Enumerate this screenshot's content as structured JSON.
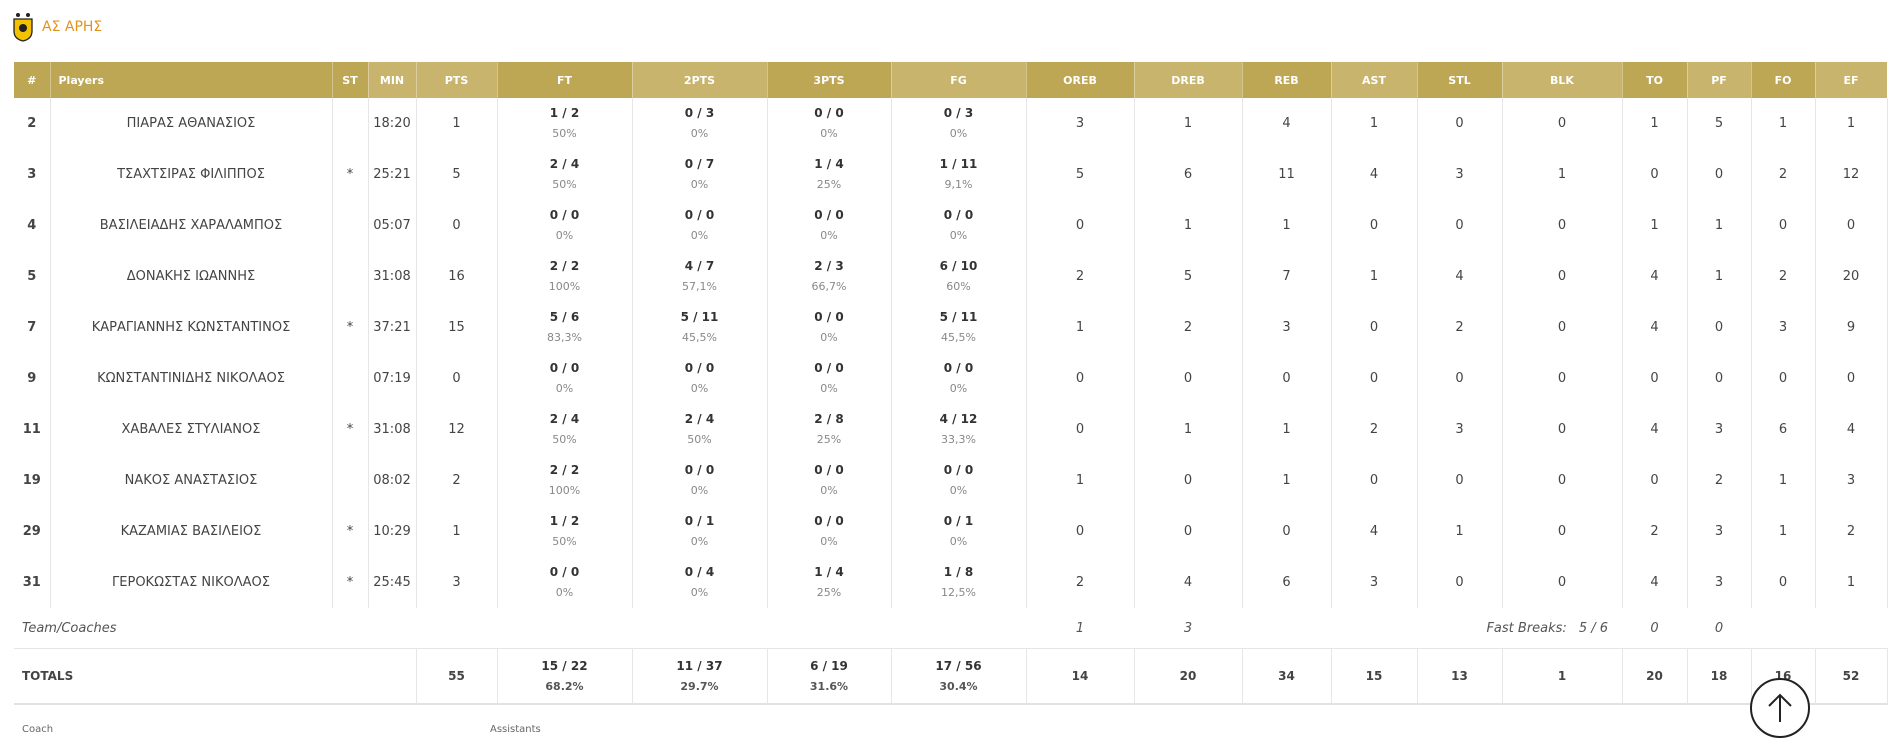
{
  "team": {
    "name": "ΑΣ ΑΡΗΣ"
  },
  "colors": {
    "header_dark": "#bda654",
    "header_light": "#c8b46c",
    "team_name": "#e2931c"
  },
  "headers": [
    "#",
    "Players",
    "ST",
    "MIN",
    "PTS",
    "FT",
    "2PTS",
    "3PTS",
    "FG",
    "OREB",
    "DREB",
    "REB",
    "AST",
    "STL",
    "BLK",
    "TO",
    "PF",
    "FO",
    "EF"
  ],
  "players": [
    {
      "num": "2",
      "name": "ΠΙΑΡΑΣ ΑΘΑΝΑΣΙΟΣ",
      "st": "",
      "min": "18:20",
      "pts": "1",
      "ft": "1 / 2",
      "ft_pct": "50%",
      "p2": "0 / 3",
      "p2_pct": "0%",
      "p3": "0 / 0",
      "p3_pct": "0%",
      "fg": "0 / 3",
      "fg_pct": "0%",
      "oreb": "3",
      "dreb": "1",
      "reb": "4",
      "ast": "1",
      "stl": "0",
      "blk": "0",
      "to": "1",
      "pf": "5",
      "fo": "1",
      "ef": "1"
    },
    {
      "num": "3",
      "name": "ΤΣΑΧΤΣΙΡΑΣ ΦΙΛΙΠΠΟΣ",
      "st": "*",
      "min": "25:21",
      "pts": "5",
      "ft": "2 / 4",
      "ft_pct": "50%",
      "p2": "0 / 7",
      "p2_pct": "0%",
      "p3": "1 / 4",
      "p3_pct": "25%",
      "fg": "1 / 11",
      "fg_pct": "9,1%",
      "oreb": "5",
      "dreb": "6",
      "reb": "11",
      "ast": "4",
      "stl": "3",
      "blk": "1",
      "to": "0",
      "pf": "0",
      "fo": "2",
      "ef": "12"
    },
    {
      "num": "4",
      "name": "ΒΑΣΙΛΕΙΑΔΗΣ ΧΑΡΑΛΑΜΠΟΣ",
      "st": "",
      "min": "05:07",
      "pts": "0",
      "ft": "0 / 0",
      "ft_pct": "0%",
      "p2": "0 / 0",
      "p2_pct": "0%",
      "p3": "0 / 0",
      "p3_pct": "0%",
      "fg": "0 / 0",
      "fg_pct": "0%",
      "oreb": "0",
      "dreb": "1",
      "reb": "1",
      "ast": "0",
      "stl": "0",
      "blk": "0",
      "to": "1",
      "pf": "1",
      "fo": "0",
      "ef": "0"
    },
    {
      "num": "5",
      "name": "ΔΟΝΑΚΗΣ ΙΩΑΝΝΗΣ",
      "st": "",
      "min": "31:08",
      "pts": "16",
      "ft": "2 / 2",
      "ft_pct": "100%",
      "p2": "4 / 7",
      "p2_pct": "57,1%",
      "p3": "2 / 3",
      "p3_pct": "66,7%",
      "fg": "6 / 10",
      "fg_pct": "60%",
      "oreb": "2",
      "dreb": "5",
      "reb": "7",
      "ast": "1",
      "stl": "4",
      "blk": "0",
      "to": "4",
      "pf": "1",
      "fo": "2",
      "ef": "20"
    },
    {
      "num": "7",
      "name": "ΚΑΡΑΓΙΑΝΝΗΣ ΚΩΝΣΤΑΝΤΙΝΟΣ",
      "st": "*",
      "min": "37:21",
      "pts": "15",
      "ft": "5 / 6",
      "ft_pct": "83,3%",
      "p2": "5 / 11",
      "p2_pct": "45,5%",
      "p3": "0 / 0",
      "p3_pct": "0%",
      "fg": "5 / 11",
      "fg_pct": "45,5%",
      "oreb": "1",
      "dreb": "2",
      "reb": "3",
      "ast": "0",
      "stl": "2",
      "blk": "0",
      "to": "4",
      "pf": "0",
      "fo": "3",
      "ef": "9"
    },
    {
      "num": "9",
      "name": "ΚΩΝΣΤΑΝΤΙΝΙΔΗΣ ΝΙΚΟΛΑΟΣ",
      "st": "",
      "min": "07:19",
      "pts": "0",
      "ft": "0 / 0",
      "ft_pct": "0%",
      "p2": "0 / 0",
      "p2_pct": "0%",
      "p3": "0 / 0",
      "p3_pct": "0%",
      "fg": "0 / 0",
      "fg_pct": "0%",
      "oreb": "0",
      "dreb": "0",
      "reb": "0",
      "ast": "0",
      "stl": "0",
      "blk": "0",
      "to": "0",
      "pf": "0",
      "fo": "0",
      "ef": "0"
    },
    {
      "num": "11",
      "name": "ΧΑΒΑΛΕΣ ΣΤΥΛΙΑΝΟΣ",
      "st": "*",
      "min": "31:08",
      "pts": "12",
      "ft": "2 / 4",
      "ft_pct": "50%",
      "p2": "2 / 4",
      "p2_pct": "50%",
      "p3": "2 / 8",
      "p3_pct": "25%",
      "fg": "4 / 12",
      "fg_pct": "33,3%",
      "oreb": "0",
      "dreb": "1",
      "reb": "1",
      "ast": "2",
      "stl": "3",
      "blk": "0",
      "to": "4",
      "pf": "3",
      "fo": "6",
      "ef": "4"
    },
    {
      "num": "19",
      "name": "ΝΑΚΟΣ ΑΝΑΣΤΑΣΙΟΣ",
      "st": "",
      "min": "08:02",
      "pts": "2",
      "ft": "2 / 2",
      "ft_pct": "100%",
      "p2": "0 / 0",
      "p2_pct": "0%",
      "p3": "0 / 0",
      "p3_pct": "0%",
      "fg": "0 / 0",
      "fg_pct": "0%",
      "oreb": "1",
      "dreb": "0",
      "reb": "1",
      "ast": "0",
      "stl": "0",
      "blk": "0",
      "to": "0",
      "pf": "2",
      "fo": "1",
      "ef": "3"
    },
    {
      "num": "29",
      "name": "ΚΑΖΑΜΙΑΣ ΒΑΣΙΛΕΙΟΣ",
      "st": "*",
      "min": "10:29",
      "pts": "1",
      "ft": "1 / 2",
      "ft_pct": "50%",
      "p2": "0 / 1",
      "p2_pct": "0%",
      "p3": "0 / 0",
      "p3_pct": "0%",
      "fg": "0 / 1",
      "fg_pct": "0%",
      "oreb": "0",
      "dreb": "0",
      "reb": "0",
      "ast": "4",
      "stl": "1",
      "blk": "0",
      "to": "2",
      "pf": "3",
      "fo": "1",
      "ef": "2"
    },
    {
      "num": "31",
      "name": "ΓΕΡΟΚΩΣΤΑΣ ΝΙΚΟΛΑΟΣ",
      "st": "*",
      "min": "25:45",
      "pts": "3",
      "ft": "0 / 0",
      "ft_pct": "0%",
      "p2": "0 / 4",
      "p2_pct": "0%",
      "p3": "1 / 4",
      "p3_pct": "25%",
      "fg": "1 / 8",
      "fg_pct": "12,5%",
      "oreb": "2",
      "dreb": "4",
      "reb": "6",
      "ast": "3",
      "stl": "0",
      "blk": "0",
      "to": "4",
      "pf": "3",
      "fo": "0",
      "ef": "1"
    }
  ],
  "team_row": {
    "label": "Team/Coaches",
    "oreb": "1",
    "dreb": "3",
    "fast_breaks_label": "Fast Breaks:",
    "fast_breaks_value": "5 / 6",
    "to": "0",
    "pf": "0"
  },
  "totals": {
    "label": "TOTALS",
    "pts": "55",
    "ft": "15 / 22",
    "ft_pct": "68.2%",
    "p2": "11 / 37",
    "p2_pct": "29.7%",
    "p3": "6 / 19",
    "p3_pct": "31.6%",
    "fg": "17 / 56",
    "fg_pct": "30.4%",
    "oreb": "14",
    "dreb": "20",
    "reb": "34",
    "ast": "15",
    "stl": "13",
    "blk": "1",
    "to": "20",
    "pf": "18",
    "fo": "16",
    "ef": "52"
  },
  "footer": {
    "coach_label": "Coach",
    "assistants_label": "Assistants"
  }
}
